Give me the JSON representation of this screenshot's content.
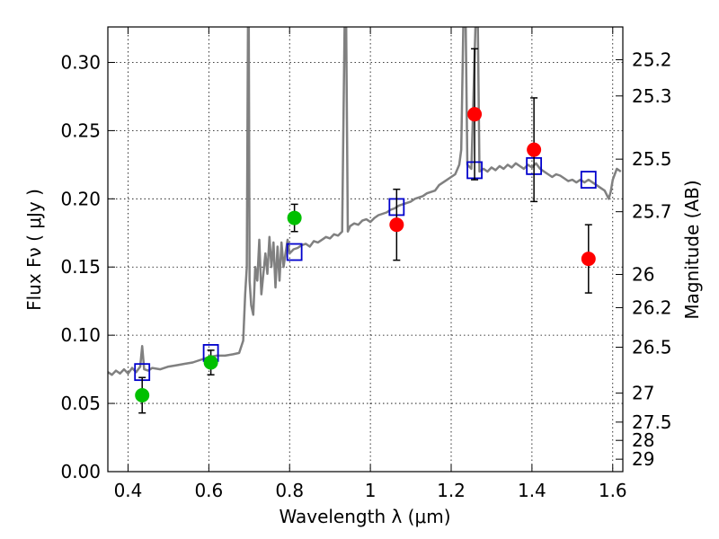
{
  "chart_data": {
    "type": "scatter",
    "title": "",
    "xlabel": "Wavelength  λ (μm)",
    "ylabel": "Flux  Fν  ( μJy )",
    "y2label": "Magnitude (AB)",
    "xlim": [
      0.35,
      1.625
    ],
    "ylim": [
      0.0,
      0.326
    ],
    "grid": true,
    "legend": "none",
    "x_ticks": [
      {
        "value": 0.4,
        "label": "0.4"
      },
      {
        "value": 0.6,
        "label": "0.6"
      },
      {
        "value": 0.8,
        "label": "0.8"
      },
      {
        "value": 1.0,
        "label": "1"
      },
      {
        "value": 1.2,
        "label": "1.2"
      },
      {
        "value": 1.4,
        "label": "1.4"
      },
      {
        "value": 1.6,
        "label": "1.6"
      }
    ],
    "y_ticks": [
      {
        "value": 0.0,
        "label": "0.00"
      },
      {
        "value": 0.05,
        "label": "0.05"
      },
      {
        "value": 0.1,
        "label": "0.10"
      },
      {
        "value": 0.15,
        "label": "0.15"
      },
      {
        "value": 0.2,
        "label": "0.20"
      },
      {
        "value": 0.25,
        "label": "0.25"
      },
      {
        "value": 0.3,
        "label": "0.30"
      }
    ],
    "y2_ticks": [
      {
        "value": 25.2,
        "label": "25.2"
      },
      {
        "value": 25.3,
        "label": "25.3"
      },
      {
        "value": 25.5,
        "label": "25.5"
      },
      {
        "value": 25.7,
        "label": "25.7"
      },
      {
        "value": 26.0,
        "label": "26"
      },
      {
        "value": 26.2,
        "label": "26.2"
      },
      {
        "value": 26.5,
        "label": "26.5"
      },
      {
        "value": 27.0,
        "label": "27"
      },
      {
        "value": 27.5,
        "label": "27.5"
      },
      {
        "value": 28.0,
        "label": "28"
      },
      {
        "value": 29.0,
        "label": "29"
      }
    ],
    "series": [
      {
        "kind": "line",
        "color": "#808080",
        "points": [
          [
            0.35,
            0.073
          ],
          [
            0.36,
            0.071
          ],
          [
            0.37,
            0.074
          ],
          [
            0.38,
            0.072
          ],
          [
            0.39,
            0.075
          ],
          [
            0.4,
            0.072
          ],
          [
            0.41,
            0.076
          ],
          [
            0.42,
            0.073
          ],
          [
            0.43,
            0.077
          ],
          [
            0.435,
            0.092
          ],
          [
            0.44,
            0.075
          ],
          [
            0.45,
            0.074
          ],
          [
            0.46,
            0.076
          ],
          [
            0.48,
            0.075
          ],
          [
            0.5,
            0.077
          ],
          [
            0.52,
            0.078
          ],
          [
            0.54,
            0.079
          ],
          [
            0.56,
            0.08
          ],
          [
            0.58,
            0.082
          ],
          [
            0.6,
            0.084
          ],
          [
            0.62,
            0.085
          ],
          [
            0.64,
            0.085
          ],
          [
            0.66,
            0.086
          ],
          [
            0.675,
            0.087
          ],
          [
            0.685,
            0.096
          ],
          [
            0.69,
            0.13
          ],
          [
            0.694,
            0.15
          ],
          [
            0.697,
            0.326
          ],
          [
            0.699,
            0.326
          ],
          [
            0.701,
            0.14
          ],
          [
            0.705,
            0.122
          ],
          [
            0.71,
            0.115
          ],
          [
            0.715,
            0.15
          ],
          [
            0.72,
            0.14
          ],
          [
            0.725,
            0.17
          ],
          [
            0.73,
            0.13
          ],
          [
            0.74,
            0.16
          ],
          [
            0.745,
            0.145
          ],
          [
            0.75,
            0.172
          ],
          [
            0.755,
            0.15
          ],
          [
            0.76,
            0.168
          ],
          [
            0.765,
            0.135
          ],
          [
            0.77,
            0.165
          ],
          [
            0.775,
            0.14
          ],
          [
            0.78,
            0.168
          ],
          [
            0.785,
            0.15
          ],
          [
            0.79,
            0.16
          ],
          [
            0.795,
            0.17
          ],
          [
            0.8,
            0.16
          ],
          [
            0.81,
            0.163
          ],
          [
            0.82,
            0.164
          ],
          [
            0.83,
            0.166
          ],
          [
            0.84,
            0.167
          ],
          [
            0.85,
            0.165
          ],
          [
            0.86,
            0.169
          ],
          [
            0.87,
            0.168
          ],
          [
            0.88,
            0.17
          ],
          [
            0.89,
            0.172
          ],
          [
            0.9,
            0.171
          ],
          [
            0.91,
            0.174
          ],
          [
            0.92,
            0.173
          ],
          [
            0.93,
            0.176
          ],
          [
            0.936,
            0.326
          ],
          [
            0.94,
            0.326
          ],
          [
            0.944,
            0.176
          ],
          [
            0.95,
            0.18
          ],
          [
            0.96,
            0.182
          ],
          [
            0.97,
            0.181
          ],
          [
            0.98,
            0.184
          ],
          [
            0.99,
            0.185
          ],
          [
            1.0,
            0.183
          ],
          [
            1.01,
            0.186
          ],
          [
            1.02,
            0.188
          ],
          [
            1.03,
            0.189
          ],
          [
            1.04,
            0.19
          ],
          [
            1.05,
            0.192
          ],
          [
            1.06,
            0.193
          ],
          [
            1.07,
            0.195
          ],
          [
            1.08,
            0.196
          ],
          [
            1.09,
            0.197
          ],
          [
            1.1,
            0.198
          ],
          [
            1.11,
            0.2
          ],
          [
            1.12,
            0.201
          ],
          [
            1.13,
            0.202
          ],
          [
            1.14,
            0.204
          ],
          [
            1.15,
            0.205
          ],
          [
            1.16,
            0.206
          ],
          [
            1.17,
            0.21
          ],
          [
            1.18,
            0.212
          ],
          [
            1.19,
            0.214
          ],
          [
            1.2,
            0.216
          ],
          [
            1.21,
            0.218
          ],
          [
            1.22,
            0.225
          ],
          [
            1.225,
            0.236
          ],
          [
            1.23,
            0.326
          ],
          [
            1.236,
            0.326
          ],
          [
            1.24,
            0.225
          ],
          [
            1.25,
            0.222
          ],
          [
            1.26,
            0.326
          ],
          [
            1.266,
            0.326
          ],
          [
            1.27,
            0.22
          ],
          [
            1.28,
            0.222
          ],
          [
            1.29,
            0.22
          ],
          [
            1.3,
            0.223
          ],
          [
            1.31,
            0.221
          ],
          [
            1.32,
            0.224
          ],
          [
            1.33,
            0.222
          ],
          [
            1.34,
            0.225
          ],
          [
            1.35,
            0.223
          ],
          [
            1.36,
            0.226
          ],
          [
            1.37,
            0.224
          ],
          [
            1.38,
            0.222
          ],
          [
            1.39,
            0.225
          ],
          [
            1.4,
            0.223
          ],
          [
            1.41,
            0.226
          ],
          [
            1.42,
            0.222
          ],
          [
            1.43,
            0.22
          ],
          [
            1.44,
            0.218
          ],
          [
            1.45,
            0.216
          ],
          [
            1.46,
            0.218
          ],
          [
            1.47,
            0.217
          ],
          [
            1.48,
            0.215
          ],
          [
            1.49,
            0.213
          ],
          [
            1.5,
            0.214
          ],
          [
            1.51,
            0.212
          ],
          [
            1.52,
            0.214
          ],
          [
            1.53,
            0.212
          ],
          [
            1.54,
            0.214
          ],
          [
            1.55,
            0.212
          ],
          [
            1.56,
            0.21
          ],
          [
            1.57,
            0.208
          ],
          [
            1.58,
            0.206
          ],
          [
            1.59,
            0.2
          ],
          [
            1.595,
            0.205
          ],
          [
            1.6,
            0.214
          ],
          [
            1.61,
            0.222
          ],
          [
            1.62,
            0.22
          ]
        ]
      },
      {
        "kind": "squares",
        "color": "#0000cc",
        "points": [
          [
            0.435,
            0.073
          ],
          [
            0.605,
            0.087
          ],
          [
            0.812,
            0.161
          ],
          [
            1.065,
            0.194
          ],
          [
            1.258,
            0.221
          ],
          [
            1.405,
            0.224
          ],
          [
            1.54,
            0.214
          ]
        ]
      },
      {
        "kind": "points",
        "color": "#00c000",
        "points": [
          [
            0.435,
            0.056
          ],
          [
            0.605,
            0.08
          ],
          [
            0.812,
            0.186
          ]
        ],
        "errors": [
          [
            0.013,
            0.013
          ],
          [
            0.009,
            0.009
          ],
          [
            0.01,
            0.01
          ]
        ]
      },
      {
        "kind": "points",
        "color": "#ff0000",
        "points": [
          [
            1.065,
            0.181
          ],
          [
            1.258,
            0.262
          ],
          [
            1.405,
            0.236
          ],
          [
            1.54,
            0.156
          ]
        ],
        "errors": [
          [
            0.026,
            0.026
          ],
          [
            0.048,
            0.048
          ],
          [
            0.038,
            0.038
          ],
          [
            0.025,
            0.025
          ]
        ]
      }
    ]
  }
}
